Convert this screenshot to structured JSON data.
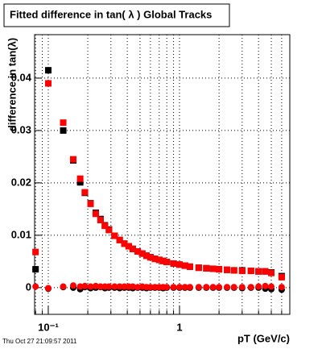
{
  "chart_data": {
    "type": "scatter",
    "title": "Fitted difference in tan( λ )  Global Tracks",
    "y_label": "difference in tan(λ)",
    "x_label": "pT (GeV/c)",
    "timestamp": "Thu Oct 27 21:09:57 2011",
    "log_x": true,
    "grid": true,
    "xlim": [
      0.0787,
      6.92
    ],
    "ylim": [
      -0.0051,
      0.0483
    ],
    "xticks": [
      {
        "value": 0.1,
        "label": "10⁻¹"
      },
      1
    ],
    "xminor": [
      0.08,
      0.09,
      0.2,
      0.3,
      0.4,
      0.5,
      0.6,
      0.7,
      0.8,
      0.9,
      2,
      3,
      4,
      5,
      6
    ],
    "yticks": [
      0,
      0.01,
      0.02,
      0.03,
      0.04
    ],
    "x": [
      0.08,
      0.1,
      0.13,
      0.155,
      0.175,
      0.19,
      0.21,
      0.23,
      0.25,
      0.27,
      0.29,
      0.32,
      0.35,
      0.38,
      0.41,
      0.44,
      0.48,
      0.52,
      0.56,
      0.6,
      0.65,
      0.7,
      0.75,
      0.8,
      0.9,
      1.0,
      1.1,
      1.2,
      1.4,
      1.6,
      1.8,
      2.0,
      2.3,
      2.6,
      3.0,
      3.5,
      4.0,
      4.5,
      5.0,
      6.0
    ],
    "series": [
      {
        "color": "#000000",
        "marker": "square",
        "values": [
          0.0035,
          0.0415,
          0.03,
          0.0243,
          0.0201,
          0.0181,
          0.0161,
          0.0143,
          0.0131,
          0.0119,
          0.0111,
          0.0099,
          0.0091,
          0.0084,
          0.0079,
          0.0074,
          0.0069,
          0.0065,
          0.0061,
          0.0058,
          0.0055,
          0.0053,
          0.0051,
          0.0049,
          0.0046,
          0.0044,
          0.0042,
          0.004,
          0.0038,
          0.0037,
          0.0036,
          0.0035,
          0.0034,
          0.0033,
          0.0033,
          0.0032,
          0.0031,
          0.0031,
          0.0029,
          0.0022
        ]
      },
      {
        "color": "#ff0000",
        "marker": "square",
        "values": [
          0.0068,
          0.039,
          0.0315,
          0.0245,
          0.0208,
          0.0182,
          0.016,
          0.0141,
          0.0129,
          0.0118,
          0.011,
          0.0099,
          0.0091,
          0.0084,
          0.0079,
          0.0074,
          0.0069,
          0.0065,
          0.0061,
          0.0058,
          0.0055,
          0.0053,
          0.0051,
          0.0049,
          0.0046,
          0.0044,
          0.0042,
          0.004,
          0.0038,
          0.0037,
          0.0036,
          0.0035,
          0.0034,
          0.0033,
          0.0032,
          0.0032,
          0.0031,
          0.0031,
          0.0028,
          0.002
        ]
      },
      {
        "color": "#000000",
        "marker": "circle",
        "values": [
          0.0035,
          -0.0002,
          0.0001,
          0.0,
          -0.0003,
          0.0001,
          -0.0001,
          0.0,
          0.0001,
          -0.0001,
          0.0,
          0.0,
          -0.0001,
          0.0,
          0.0,
          -0.0001,
          0.0,
          0.0,
          -0.0001,
          0.0,
          0.0,
          0.0,
          -0.0001,
          0.0,
          0.0,
          0.0,
          0.0,
          0.0,
          0.0,
          0.0,
          0.0,
          0.0,
          0.0,
          0.0,
          -0.0001,
          0.0,
          0.0,
          -0.0002,
          -0.0003,
          -0.0004
        ]
      },
      {
        "color": "#ff0000",
        "marker": "circle",
        "values": [
          0.0002,
          -0.0001,
          0.0002,
          0.0004,
          0.0002,
          0.0003,
          0.0002,
          0.0003,
          0.0002,
          0.0002,
          0.0002,
          0.0002,
          0.0002,
          0.0002,
          0.0002,
          0.0002,
          0.0001,
          0.0002,
          0.0001,
          0.0001,
          0.0001,
          0.0001,
          0.0001,
          0.0001,
          0.0001,
          0.0001,
          0.0001,
          0.0001,
          0.0001,
          0.0001,
          0.0001,
          0.0001,
          0.0001,
          0.0001,
          0.0001,
          0.0001,
          0.0002,
          0.0003,
          0.0002,
          0.0001
        ]
      }
    ]
  }
}
